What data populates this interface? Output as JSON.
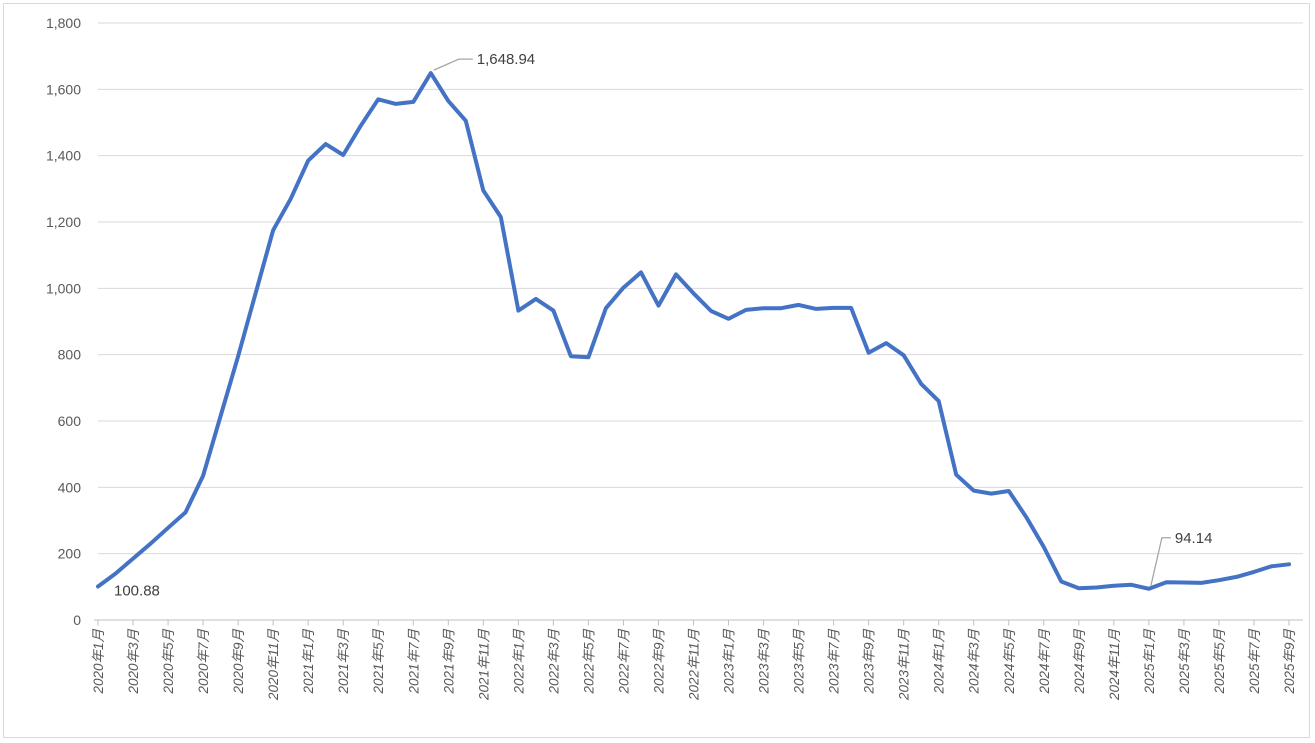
{
  "chart_data": {
    "type": "line",
    "title": "",
    "xlabel": "",
    "ylabel": "",
    "ylim": [
      0,
      1800
    ],
    "ytick_step": 200,
    "y_tick_labels": [
      "0",
      "200",
      "400",
      "600",
      "800",
      "1,000",
      "1,200",
      "1,400",
      "1,600",
      "1,800"
    ],
    "x_tick_step": 2,
    "grid": true,
    "legend": false,
    "categories": [
      "2020年1月",
      "2020年2月",
      "2020年3月",
      "2020年4月",
      "2020年5月",
      "2020年6月",
      "2020年7月",
      "2020年8月",
      "2020年9月",
      "2020年10月",
      "2020年11月",
      "2020年12月",
      "2021年1月",
      "2021年2月",
      "2021年3月",
      "2021年4月",
      "2021年5月",
      "2021年6月",
      "2021年7月",
      "2021年8月",
      "2021年9月",
      "2021年10月",
      "2021年11月",
      "2021年12月",
      "2022年1月",
      "2022年2月",
      "2022年3月",
      "2022年4月",
      "2022年5月",
      "2022年6月",
      "2022年7月",
      "2022年8月",
      "2022年9月",
      "2022年10月",
      "2022年11月",
      "2022年12月",
      "2023年1月",
      "2023年2月",
      "2023年3月",
      "2023年4月",
      "2023年5月",
      "2023年6月",
      "2023年7月",
      "2023年8月",
      "2023年9月",
      "2023年10月",
      "2023年11月",
      "2023年12月",
      "2024年1月",
      "2024年2月",
      "2024年3月",
      "2024年4月",
      "2024年5月",
      "2024年6月",
      "2024年7月",
      "2024年8月",
      "2024年9月",
      "2024年10月",
      "2024年11月",
      "2024年12月",
      "2025年1月",
      "2025年2月",
      "2025年3月",
      "2025年4月",
      "2025年5月",
      "2025年6月",
      "2025年7月",
      "2025年8月",
      "2025年9月"
    ],
    "series": [
      {
        "name": "",
        "color": "#4472C4",
        "values": [
          100.88,
          140,
          185,
          230,
          278,
          325,
          435,
          615,
          795,
          985,
          1175,
          1270,
          1385,
          1435,
          1402,
          1490,
          1570,
          1556,
          1562,
          1648.94,
          1565,
          1505,
          1295,
          1215,
          933,
          968,
          933,
          795,
          792,
          940,
          1002,
          1048,
          948,
          1042,
          985,
          932,
          908,
          935,
          940,
          940,
          950,
          938,
          941,
          941,
          806,
          835,
          798,
          712,
          660,
          438,
          390,
          381,
          389,
          310,
          220,
          116,
          96,
          98,
          103,
          106,
          94.14,
          114,
          113,
          112,
          120,
          130,
          145,
          162,
          168
        ]
      }
    ],
    "annotations": [
      {
        "text": "100.88",
        "category": "2020年1月",
        "index": 0,
        "value": 100.88
      },
      {
        "text": "1,648.94",
        "category": "2021年8月",
        "index": 19,
        "value": 1648.94
      },
      {
        "text": "94.14",
        "category": "2025年1月",
        "index": 60,
        "value": 94.14
      }
    ],
    "colors": {
      "line": "#4472C4",
      "gridline": "#D9D9D9",
      "axis_line": "#BFBFBF",
      "axis_label": "#595959",
      "data_label": "#404040",
      "leader_line": "#A6A6A6",
      "background": "#FFFFFF",
      "border": "#D9D9D9"
    }
  }
}
